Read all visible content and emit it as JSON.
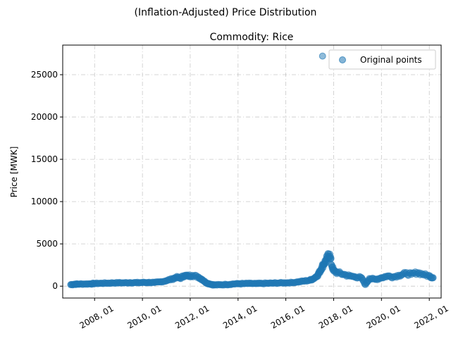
{
  "figure": {
    "suptitle": "(Inflation-Adjusted) Price Distribution"
  },
  "chart_data": {
    "type": "scatter",
    "title": "Commodity: Rice",
    "xlabel": "",
    "ylabel": "Price [MWK]",
    "xlim": [
      "2006-09-01",
      "2022-07-01"
    ],
    "ylim": [
      -1400,
      28500
    ],
    "grid": true,
    "legend": {
      "position": "top-right",
      "entries": [
        "Original points"
      ]
    },
    "colors": {
      "points": "#1f77b4"
    },
    "x_ticks": [
      "2008-01-01",
      "2010-01-01",
      "2012-01-01",
      "2014-01-01",
      "2016-01-01",
      "2018-01-01",
      "2020-01-01",
      "2022-01-01"
    ],
    "x_tick_labels": [
      "2008, 01",
      "2010, 01",
      "2012, 01",
      "2014, 01",
      "2016, 01",
      "2018, 01",
      "2020, 01",
      "2022, 01"
    ],
    "y_ticks": [
      0,
      5000,
      10000,
      15000,
      20000,
      25000
    ],
    "y_tick_labels": [
      "0",
      "5000",
      "10000",
      "15000",
      "20000",
      "25000"
    ],
    "series": [
      {
        "name": "Original points",
        "points": [
          [
            "2007-01-01",
            180
          ],
          [
            "2007-03-01",
            230
          ],
          [
            "2007-05-01",
            250
          ],
          [
            "2007-08-01",
            260
          ],
          [
            "2007-11-01",
            280
          ],
          [
            "2008-01-01",
            320
          ],
          [
            "2008-04-01",
            340
          ],
          [
            "2008-07-01",
            360
          ],
          [
            "2008-10-01",
            380
          ],
          [
            "2009-01-01",
            400
          ],
          [
            "2009-04-01",
            390
          ],
          [
            "2009-07-01",
            420
          ],
          [
            "2009-10-01",
            410
          ],
          [
            "2010-01-01",
            430
          ],
          [
            "2010-04-01",
            440
          ],
          [
            "2010-07-01",
            420
          ],
          [
            "2010-10-01",
            500
          ],
          [
            "2011-01-01",
            650
          ],
          [
            "2011-04-01",
            850
          ],
          [
            "2011-06-01",
            1050
          ],
          [
            "2011-08-01",
            950
          ],
          [
            "2011-10-01",
            1250
          ],
          [
            "2011-12-01",
            1200
          ],
          [
            "2012-02-01",
            1280
          ],
          [
            "2012-05-01",
            1100
          ],
          [
            "2012-07-01",
            800
          ],
          [
            "2012-09-01",
            400
          ],
          [
            "2012-11-01",
            250
          ],
          [
            "2013-01-01",
            150
          ],
          [
            "2013-04-01",
            160
          ],
          [
            "2013-07-01",
            200
          ],
          [
            "2013-10-01",
            250
          ],
          [
            "2014-01-01",
            290
          ],
          [
            "2014-04-01",
            300
          ],
          [
            "2014-07-01",
            320
          ],
          [
            "2014-10-01",
            300
          ],
          [
            "2015-01-01",
            320
          ],
          [
            "2015-04-01",
            340
          ],
          [
            "2015-07-01",
            360
          ],
          [
            "2015-10-01",
            380
          ],
          [
            "2016-01-01",
            400
          ],
          [
            "2016-04-01",
            420
          ],
          [
            "2016-07-01",
            500
          ],
          [
            "2016-10-01",
            600
          ],
          [
            "2017-01-01",
            700
          ],
          [
            "2017-03-01",
            900
          ],
          [
            "2017-05-01",
            1300
          ],
          [
            "2017-06-01",
            1700
          ],
          [
            "2017-07-01",
            2200
          ],
          [
            "2017-08-01",
            2600
          ],
          [
            "2017-09-01",
            3000
          ],
          [
            "2017-10-01",
            3400
          ],
          [
            "2017-11-01",
            3800
          ],
          [
            "2017-12-01",
            2500
          ],
          [
            "2018-01-01",
            1800
          ],
          [
            "2018-03-01",
            1600
          ],
          [
            "2018-06-01",
            1400
          ],
          [
            "2018-09-01",
            1200
          ],
          [
            "2018-12-01",
            1100
          ],
          [
            "2019-03-01",
            1000
          ],
          [
            "2019-05-01",
            200
          ],
          [
            "2019-07-01",
            900
          ],
          [
            "2019-10-01",
            800
          ],
          [
            "2020-01-01",
            1000
          ],
          [
            "2020-04-01",
            1200
          ],
          [
            "2020-07-01",
            1100
          ],
          [
            "2020-10-01",
            1300
          ],
          [
            "2021-01-01",
            1500
          ],
          [
            "2021-04-01",
            1400
          ],
          [
            "2021-07-01",
            1600
          ],
          [
            "2021-10-01",
            1400
          ],
          [
            "2022-01-01",
            1200
          ],
          [
            "2022-03-01",
            1000
          ],
          [
            "2017-07-15",
            27200
          ]
        ]
      }
    ]
  }
}
